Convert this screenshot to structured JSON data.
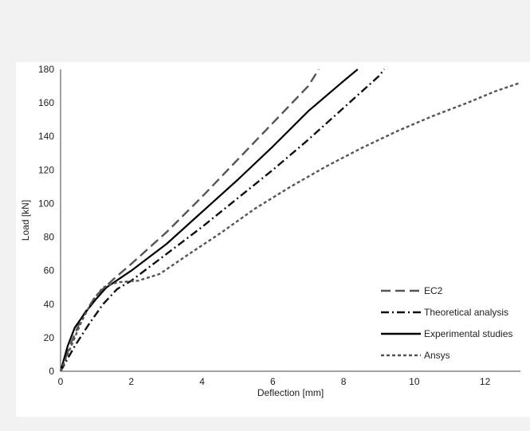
{
  "chart_data": {
    "type": "line",
    "title": "",
    "xlabel": "Deflection [mm]",
    "ylabel": "Load [kN]",
    "xlim": [
      0,
      13
    ],
    "ylim": [
      0,
      180
    ],
    "xticks": [
      "0",
      "2",
      "4",
      "6",
      "8",
      "10",
      "12"
    ],
    "yticks": [
      "0",
      "20",
      "40",
      "60",
      "80",
      "100",
      "120",
      "140",
      "160",
      "180"
    ],
    "grid": false,
    "legend_position": "bottom-right",
    "series": [
      {
        "name": "EC2",
        "style": "long-dash",
        "color": "#555555",
        "points": [
          [
            0,
            0
          ],
          [
            0.3,
            17
          ],
          [
            0.6,
            32
          ],
          [
            1.0,
            45
          ],
          [
            1.5,
            55
          ],
          [
            2,
            64
          ],
          [
            3,
            83
          ],
          [
            4,
            104
          ],
          [
            5,
            126
          ],
          [
            6,
            148
          ],
          [
            7,
            170
          ],
          [
            7.3,
            180
          ]
        ]
      },
      {
        "name": "Theoretical analysis",
        "style": "dash-dot",
        "color": "#111111",
        "points": [
          [
            0,
            0
          ],
          [
            0.4,
            15
          ],
          [
            0.8,
            28
          ],
          [
            1.2,
            40
          ],
          [
            1.6,
            49
          ],
          [
            2,
            54
          ],
          [
            3,
            70
          ],
          [
            4,
            86
          ],
          [
            5,
            103
          ],
          [
            6,
            120
          ],
          [
            7,
            138
          ],
          [
            8,
            157
          ],
          [
            9,
            176
          ],
          [
            9.15,
            180
          ]
        ]
      },
      {
        "name": "Experimental studies",
        "style": "solid",
        "color": "#000000",
        "points": [
          [
            0,
            0
          ],
          [
            0.2,
            15
          ],
          [
            0.4,
            26
          ],
          [
            0.7,
            35
          ],
          [
            1.0,
            43
          ],
          [
            1.3,
            50
          ],
          [
            2,
            60
          ],
          [
            3,
            76
          ],
          [
            4,
            95
          ],
          [
            5,
            114
          ],
          [
            6,
            134
          ],
          [
            7,
            155
          ],
          [
            8,
            173
          ],
          [
            8.4,
            180
          ]
        ]
      },
      {
        "name": "Ansys",
        "style": "short-dash",
        "color": "#555555",
        "points": [
          [
            0,
            0
          ],
          [
            0.3,
            15
          ],
          [
            0.6,
            30
          ],
          [
            0.9,
            42
          ],
          [
            1.2,
            50
          ],
          [
            1.6,
            53
          ],
          [
            2.2,
            54
          ],
          [
            2.8,
            58
          ],
          [
            3.5,
            68
          ],
          [
            4.5,
            82
          ],
          [
            5.5,
            97
          ],
          [
            6.5,
            110
          ],
          [
            7.5,
            122
          ],
          [
            8.5,
            133
          ],
          [
            9.5,
            143
          ],
          [
            10.5,
            152
          ],
          [
            11.5,
            160
          ],
          [
            12.3,
            167
          ],
          [
            13,
            172
          ]
        ]
      }
    ]
  }
}
